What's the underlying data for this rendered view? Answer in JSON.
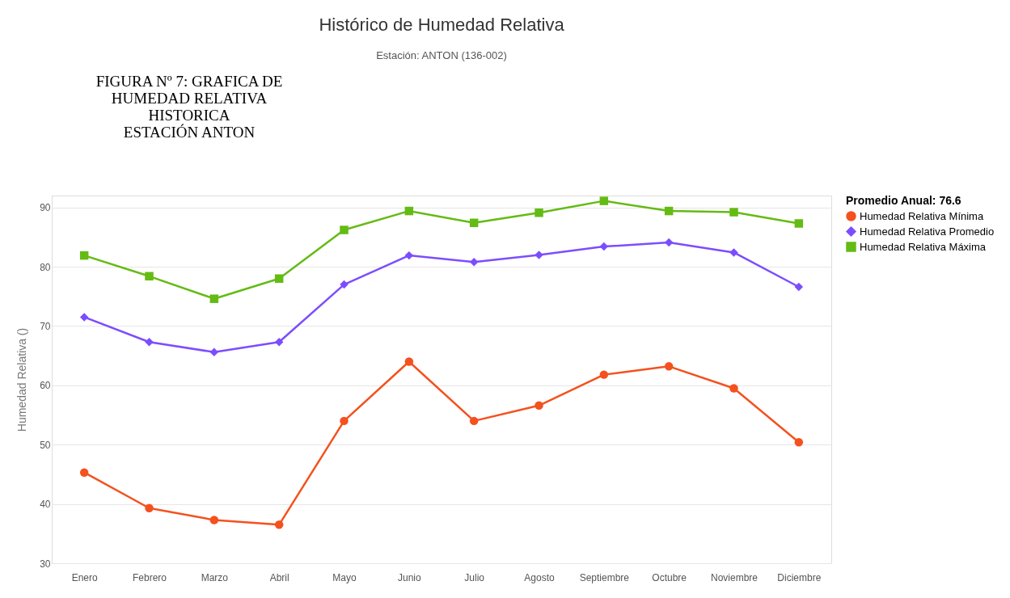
{
  "chart_data": {
    "type": "line",
    "title": "Histórico de Humedad Relativa",
    "subtitle": "Estación: ANTON (136-002)",
    "ylabel": "Humedad Relativa ()",
    "legend_title": "Promedio Anual: 76.6",
    "annotations": [
      "FIGURA Nº 7: GRAFICA DE\nHUMEDAD RELATIVA\nHISTORICA\nESTACIÓN ANTON"
    ],
    "categories": [
      "Enero",
      "Febrero",
      "Marzo",
      "Abril",
      "Mayo",
      "Junio",
      "Julio",
      "Agosto",
      "Septiembre",
      "Octubre",
      "Noviembre",
      "Diciembre"
    ],
    "series": [
      {
        "name": "Humedad Relativa Mínima",
        "color": "#f4511e",
        "marker": "circle",
        "values": [
          45.3,
          39.3,
          37.3,
          36.5,
          54.0,
          64.0,
          54.0,
          56.6,
          61.8,
          63.2,
          59.5,
          50.4
        ]
      },
      {
        "name": "Humedad Relativa Promedio",
        "color": "#7c4dff",
        "marker": "diamond",
        "values": [
          71.5,
          67.3,
          65.6,
          67.3,
          77.0,
          81.9,
          80.8,
          82.0,
          83.4,
          84.1,
          82.4,
          76.6
        ]
      },
      {
        "name": "Humedad Relativa Máxima",
        "color": "#64bb14",
        "marker": "square",
        "values": [
          81.9,
          78.4,
          74.6,
          78.0,
          86.2,
          89.4,
          87.4,
          89.1,
          91.1,
          89.4,
          89.2,
          87.3
        ]
      }
    ],
    "ylim": [
      30,
      92
    ],
    "yticks": [
      30,
      40,
      50,
      60,
      70,
      80,
      90
    ],
    "grid": "y",
    "legend": "right"
  }
}
